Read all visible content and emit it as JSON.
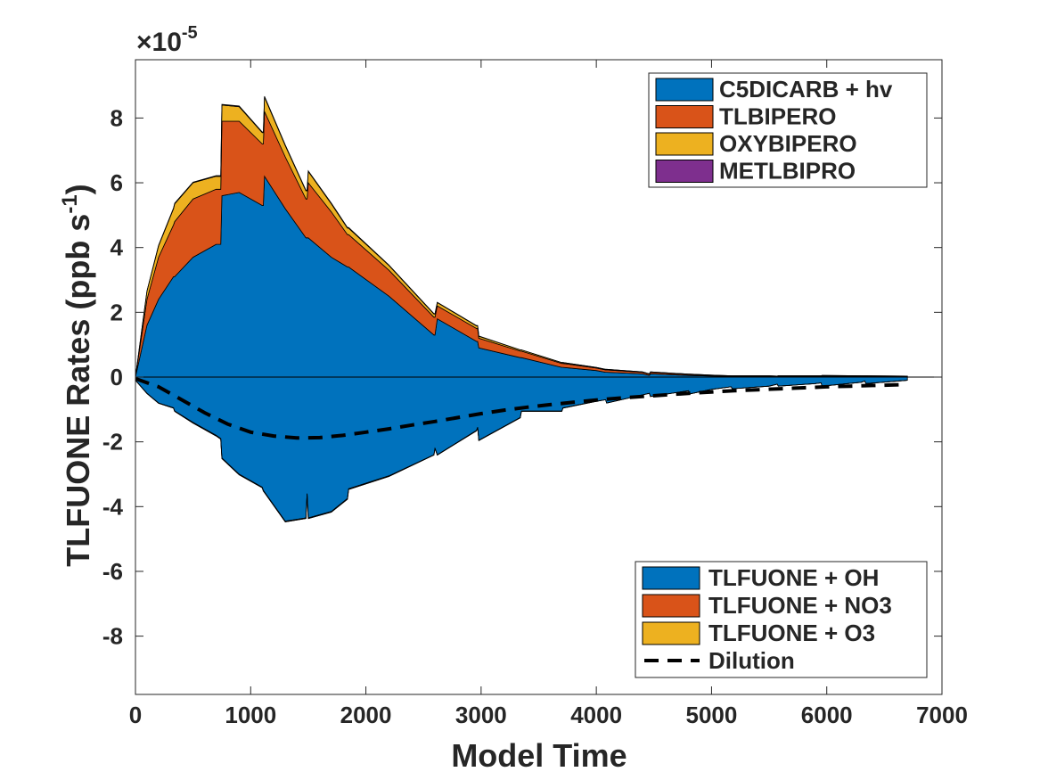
{
  "chart_data": {
    "type": "area",
    "xlabel": "Model Time",
    "ylabel": "TLFUONE Rates (ppb s",
    "ylabel_sup": "-1",
    "ylabel_close": ")",
    "exponent_prefix": "×10",
    "exponent_power": "-5",
    "xlim": [
      0,
      7000
    ],
    "ylim": [
      -9.8,
      9.8
    ],
    "xticks": [
      0,
      1000,
      2000,
      3000,
      4000,
      5000,
      6000,
      7000
    ],
    "yticks": [
      -8,
      -6,
      -4,
      -2,
      0,
      2,
      4,
      6,
      8
    ],
    "grid": false,
    "x": [
      0,
      100,
      200,
      330,
      340,
      500,
      700,
      740,
      750,
      900,
      1100,
      1110,
      1120,
      1300,
      1480,
      1490,
      1500,
      1700,
      1840,
      1850,
      2200,
      2590,
      2600,
      2620,
      2960,
      2970,
      2980,
      3340,
      3350,
      3700,
      3710,
      4000,
      4080,
      4090,
      4400,
      4460,
      4470,
      4800,
      4810,
      5000,
      5170,
      5180,
      5500,
      5570,
      5580,
      5900,
      5950,
      5960,
      6300,
      6330,
      6340,
      6700
    ],
    "positive_series": [
      {
        "name": "C5DICARB + hv",
        "color": "#0072BD",
        "values": [
          0,
          1.6,
          2.4,
          3.1,
          3.1,
          3.7,
          4.1,
          4.1,
          5.6,
          5.7,
          5.3,
          5.3,
          6.2,
          5.2,
          4.3,
          4.3,
          4.3,
          3.7,
          3.4,
          3.4,
          2.5,
          1.3,
          1.3,
          1.8,
          1.1,
          1.1,
          0.9,
          0.6,
          0.6,
          0.3,
          0.3,
          0.2,
          0.15,
          0.15,
          0.1,
          0.05,
          0.1,
          0.05,
          0.05,
          0.03,
          0.02,
          0.02,
          0.02,
          0.01,
          0.02,
          0.02,
          0.02,
          0.03,
          0.02,
          0.02,
          0.02,
          0.01
        ]
      },
      {
        "name": "TLBIPERO",
        "color": "#D95319",
        "values": [
          0,
          0.8,
          1.3,
          1.6,
          1.7,
          1.8,
          1.7,
          1.7,
          2.3,
          2.2,
          1.9,
          1.9,
          2.0,
          1.6,
          1.2,
          1.2,
          1.7,
          1.4,
          1.0,
          1.0,
          0.8,
          0.55,
          0.55,
          0.4,
          0.4,
          0.4,
          0.3,
          0.2,
          0.2,
          0.12,
          0.12,
          0.08,
          0.07,
          0.07,
          0.05,
          0.04,
          0.05,
          0.03,
          0.03,
          0.02,
          0.01,
          0.01,
          0.01,
          0.01,
          0.01,
          0.01,
          0.01,
          0.01,
          0.01,
          0.01,
          0.01,
          0.01
        ]
      },
      {
        "name": "OXYBIPERO",
        "color": "#EDB120",
        "values": [
          0,
          0.25,
          0.35,
          0.5,
          0.55,
          0.5,
          0.4,
          0.4,
          0.5,
          0.45,
          0.35,
          0.35,
          0.45,
          0.35,
          0.25,
          0.25,
          0.35,
          0.25,
          0.2,
          0.2,
          0.15,
          0.1,
          0.1,
          0.1,
          0.08,
          0.08,
          0.06,
          0.04,
          0.04,
          0.03,
          0.03,
          0.02,
          0.02,
          0.02,
          0.01,
          0.01,
          0.01,
          0.01,
          0.01,
          0.01,
          0.01,
          0.01,
          0.01,
          0.01,
          0.01,
          0.01,
          0.01,
          0.01,
          0.01,
          0.01,
          0.01,
          0.01
        ]
      },
      {
        "name": "METLBIPRO",
        "color": "#7E2F8E",
        "values": [
          0,
          0.01,
          0.02,
          0.02,
          0.02,
          0.02,
          0.02,
          0.02,
          0.02,
          0.02,
          0.02,
          0.02,
          0.02,
          0.02,
          0.02,
          0.02,
          0.02,
          0.02,
          0.02,
          0.02,
          0.01,
          0.01,
          0.01,
          0.01,
          0.01,
          0.01,
          0.01,
          0,
          0,
          0,
          0,
          0,
          0,
          0,
          0,
          0,
          0,
          0,
          0,
          0,
          0,
          0,
          0,
          0,
          0,
          0,
          0,
          0,
          0,
          0,
          0,
          0
        ]
      }
    ],
    "negative_series": [
      {
        "name": "TLFUONE + OH",
        "color": "#0072BD",
        "values": [
          -0.1,
          -0.5,
          -0.8,
          -0.95,
          -1.05,
          -1.4,
          -1.8,
          -1.9,
          -2.5,
          -3.0,
          -3.4,
          -3.5,
          -3.55,
          -4.45,
          -4.35,
          -3.6,
          -4.35,
          -4.15,
          -3.75,
          -3.45,
          -3.05,
          -2.4,
          -2.2,
          -2.4,
          -1.65,
          -1.55,
          -1.95,
          -1.25,
          -1.05,
          -1.05,
          -0.95,
          -0.75,
          -0.7,
          -0.8,
          -0.55,
          -0.5,
          -0.6,
          -0.42,
          -0.52,
          -0.38,
          -0.3,
          -0.36,
          -0.28,
          -0.22,
          -0.28,
          -0.2,
          -0.18,
          -0.28,
          -0.16,
          -0.12,
          -0.2,
          -0.1
        ]
      },
      {
        "name": "TLFUONE + NO3",
        "color": "#D95319",
        "values": [
          0,
          -0.01,
          -0.01,
          -0.01,
          -0.01,
          -0.02,
          -0.02,
          -0.02,
          -0.02,
          -0.02,
          -0.02,
          -0.02,
          -0.02,
          -0.02,
          -0.02,
          -0.02,
          -0.02,
          -0.02,
          -0.02,
          -0.02,
          -0.02,
          -0.01,
          -0.01,
          -0.01,
          -0.01,
          -0.01,
          -0.01,
          -0.01,
          -0.01,
          -0.01,
          -0.01,
          0,
          0,
          0,
          0,
          0,
          0,
          0,
          0,
          0,
          0,
          0,
          0,
          0,
          0,
          0,
          0,
          0,
          0,
          0,
          0,
          0
        ]
      },
      {
        "name": "TLFUONE + O3",
        "color": "#EDB120",
        "values": [
          0,
          0,
          0,
          0,
          0,
          0,
          0,
          0,
          0,
          0,
          0,
          0,
          0,
          0,
          0,
          0,
          0,
          0,
          0,
          0,
          0,
          0,
          0,
          0,
          0,
          0,
          0,
          0,
          0,
          0,
          0,
          0,
          0,
          0,
          0,
          0,
          0,
          0,
          0,
          0,
          0,
          0,
          0,
          0,
          0,
          0,
          0,
          0,
          0,
          0,
          0,
          0
        ]
      }
    ],
    "dilution": {
      "name": "Dilution",
      "x": [
        0,
        200,
        400,
        600,
        800,
        1000,
        1200,
        1400,
        1600,
        1800,
        2000,
        2200,
        2400,
        2600,
        2800,
        3000,
        3200,
        3400,
        3600,
        3800,
        4000,
        4200,
        4400,
        4600,
        4800,
        5000,
        5200,
        5400,
        5600,
        5800,
        6000,
        6200,
        6400,
        6700
      ],
      "values": [
        -0.05,
        -0.3,
        -0.7,
        -1.1,
        -1.45,
        -1.7,
        -1.82,
        -1.88,
        -1.87,
        -1.8,
        -1.7,
        -1.6,
        -1.48,
        -1.37,
        -1.25,
        -1.13,
        -1.02,
        -0.93,
        -0.85,
        -0.78,
        -0.71,
        -0.65,
        -0.6,
        -0.55,
        -0.5,
        -0.46,
        -0.42,
        -0.39,
        -0.36,
        -0.33,
        -0.3,
        -0.28,
        -0.26,
        -0.23
      ]
    },
    "legend_positive_location": "top-right",
    "legend_negative_location": "bottom-right"
  }
}
